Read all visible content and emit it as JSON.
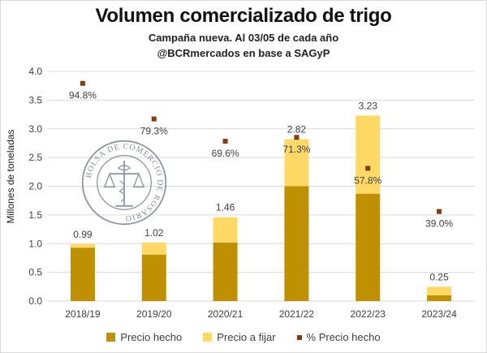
{
  "header": {
    "title": "Volumen comercializado de trigo",
    "subtitle_line1": "Campaña nueva. Al 03/05 de cada año",
    "subtitle_line2": "@BCRmercados en base a SAGyP"
  },
  "watermark": {
    "text": "BOLSA DE COMERCIO DE ROSARIO"
  },
  "colors": {
    "precio_hecho": "#BF9000",
    "precio_a_fijar": "#FFD966",
    "pct_marker": "#843C0C",
    "grid": "#D9D9D9"
  },
  "chart_data": {
    "type": "bar",
    "stacked": true,
    "title": "Volumen comercializado de trigo",
    "ylabel": "Millones de toneladas",
    "ylim": [
      0,
      4.0
    ],
    "yticks": [
      "0.0",
      "0.5",
      "1.0",
      "1.5",
      "2.0",
      "2.5",
      "3.0",
      "3.5",
      "4.0"
    ],
    "categories": [
      "2018/19",
      "2019/20",
      "2020/21",
      "2021/22",
      "2022/23",
      "2023/24"
    ],
    "series": [
      {
        "name": "Precio hecho",
        "values": [
          0.93,
          0.81,
          1.02,
          2.0,
          1.87,
          0.1
        ]
      },
      {
        "name": "Precio a fijar",
        "values": [
          0.06,
          0.21,
          0.44,
          0.82,
          1.36,
          0.15
        ]
      }
    ],
    "totals": [
      0.99,
      1.02,
      1.46,
      2.82,
      3.23,
      0.25
    ],
    "total_labels": [
      "0.99",
      "1.02",
      "1.46",
      "2.82",
      "3.23",
      "0.25"
    ],
    "pct_series": {
      "name": "% Precio hecho",
      "values": [
        94.8,
        79.3,
        69.6,
        71.3,
        57.8,
        39.0
      ],
      "labels": [
        "94.8%",
        "79.3%",
        "69.6%",
        "71.3%",
        "57.8%",
        "39.0%"
      ]
    },
    "legend": [
      "Precio hecho",
      "Precio a fijar",
      "% Precio hecho"
    ],
    "legend_position": "bottom",
    "grid": true
  }
}
